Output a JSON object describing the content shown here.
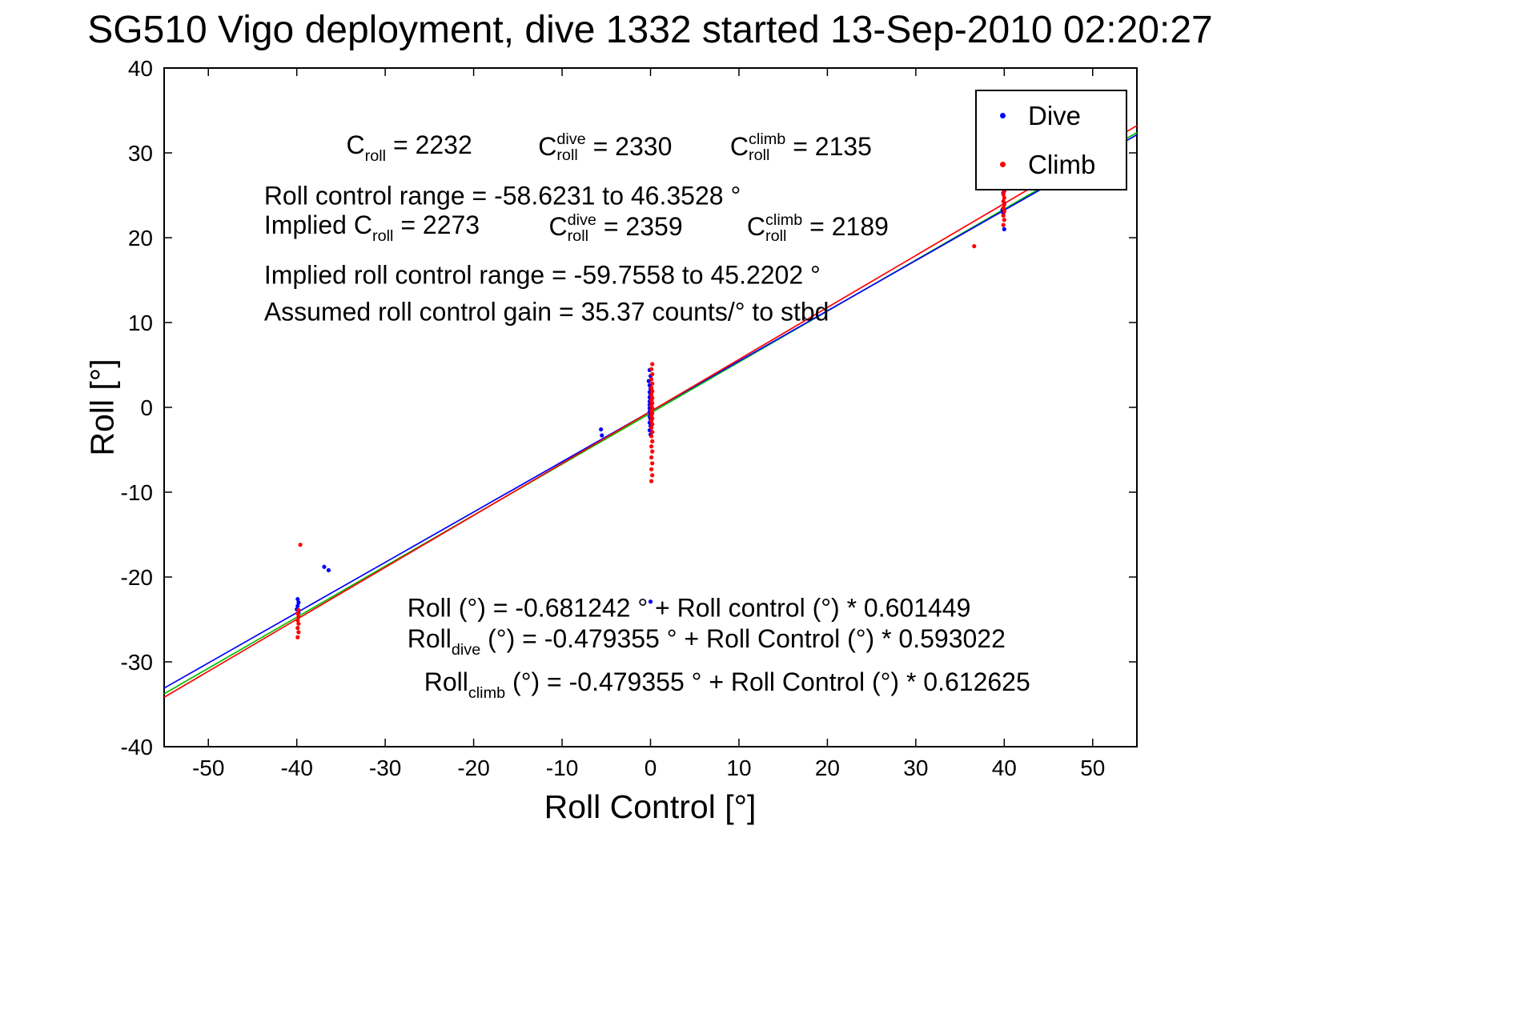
{
  "chart_data": {
    "type": "scatter",
    "title": "SG510 Vigo deployment, dive 1332 started 13-Sep-2010 02:20:27",
    "xlabel": "Roll Control [°]",
    "ylabel": "Roll [°]",
    "xlim": [
      -55,
      55
    ],
    "ylim": [
      -40,
      40
    ],
    "xticks": [
      -50,
      -40,
      -30,
      -20,
      -10,
      0,
      10,
      20,
      30,
      40,
      50
    ],
    "yticks": [
      -40,
      -30,
      -20,
      -10,
      0,
      10,
      20,
      30,
      40
    ],
    "grid": false,
    "legend_position": "top-right",
    "legend": [
      {
        "label": "Dive",
        "color": "#0000ff"
      },
      {
        "label": "Climb",
        "color": "#ff0000"
      }
    ],
    "fit_lines": [
      {
        "name": "all",
        "color": "#00c000",
        "intercept": -0.681242,
        "slope": 0.601449
      },
      {
        "name": "dive",
        "color": "#0000ff",
        "intercept": -0.479355,
        "slope": 0.593022
      },
      {
        "name": "climb",
        "color": "#ff0000",
        "intercept": -0.479355,
        "slope": 0.612625
      }
    ],
    "series": [
      {
        "name": "Dive",
        "color": "#0000ff",
        "points": [
          [
            -39.9,
            -22.6
          ],
          [
            -39.8,
            -23.0
          ],
          [
            -39.9,
            -23.4
          ],
          [
            -40.0,
            -23.8
          ],
          [
            -39.8,
            -24.2
          ],
          [
            -36.9,
            -18.8
          ],
          [
            -36.4,
            -19.2
          ],
          [
            -5.6,
            -2.6
          ],
          [
            -5.5,
            -3.3
          ],
          [
            -0.1,
            4.4
          ],
          [
            0.0,
            3.7
          ],
          [
            -0.2,
            3.1
          ],
          [
            -0.1,
            2.6
          ],
          [
            0.0,
            2.2
          ],
          [
            -0.1,
            1.8
          ],
          [
            0.0,
            1.5
          ],
          [
            -0.1,
            1.2
          ],
          [
            0.0,
            0.9
          ],
          [
            -0.1,
            0.7
          ],
          [
            0.0,
            0.5
          ],
          [
            -0.1,
            0.3
          ],
          [
            0.0,
            0.1
          ],
          [
            -0.1,
            -0.1
          ],
          [
            0.0,
            -0.3
          ],
          [
            -0.1,
            -0.5
          ],
          [
            0.0,
            -0.8
          ],
          [
            -0.1,
            -1.1
          ],
          [
            0.0,
            -1.4
          ],
          [
            -0.1,
            -1.8
          ],
          [
            0.0,
            -2.2
          ],
          [
            -0.1,
            -2.7
          ],
          [
            0.0,
            -3.2
          ],
          [
            0.0,
            -22.9
          ],
          [
            39.9,
            28.9
          ],
          [
            39.8,
            26.1
          ],
          [
            39.9,
            25.3
          ],
          [
            40.0,
            24.0
          ],
          [
            39.8,
            23.3
          ],
          [
            39.9,
            22.9
          ],
          [
            40.0,
            21.0
          ]
        ]
      },
      {
        "name": "Climb",
        "color": "#ff0000",
        "points": [
          [
            -39.6,
            -16.2
          ],
          [
            -39.8,
            -23.9
          ],
          [
            -39.9,
            -24.3
          ],
          [
            -39.8,
            -24.7
          ],
          [
            -39.9,
            -25.1
          ],
          [
            -39.8,
            -25.5
          ],
          [
            -39.9,
            -26.0
          ],
          [
            -39.8,
            -26.5
          ],
          [
            -39.9,
            -27.1
          ],
          [
            0.2,
            5.1
          ],
          [
            0.1,
            4.5
          ],
          [
            0.2,
            3.9
          ],
          [
            0.1,
            3.3
          ],
          [
            0.2,
            2.8
          ],
          [
            0.1,
            2.3
          ],
          [
            0.2,
            1.9
          ],
          [
            0.1,
            1.5
          ],
          [
            0.2,
            1.1
          ],
          [
            0.1,
            0.8
          ],
          [
            0.2,
            0.5
          ],
          [
            0.1,
            0.2
          ],
          [
            0.2,
            -0.1
          ],
          [
            0.1,
            -0.4
          ],
          [
            0.2,
            -0.7
          ],
          [
            0.1,
            -1.0
          ],
          [
            0.2,
            -1.3
          ],
          [
            0.1,
            -1.6
          ],
          [
            0.2,
            -2.0
          ],
          [
            0.1,
            -2.4
          ],
          [
            0.2,
            -2.9
          ],
          [
            0.1,
            -3.4
          ],
          [
            0.2,
            -4.0
          ],
          [
            0.1,
            -4.6
          ],
          [
            0.2,
            -5.2
          ],
          [
            0.1,
            -5.9
          ],
          [
            0.2,
            -6.6
          ],
          [
            0.1,
            -7.3
          ],
          [
            0.2,
            -8.0
          ],
          [
            0.1,
            -8.7
          ],
          [
            36.6,
            19.0
          ],
          [
            39.8,
            26.4
          ],
          [
            39.9,
            25.9
          ],
          [
            40.0,
            25.5
          ],
          [
            39.9,
            25.1
          ],
          [
            40.0,
            24.7
          ],
          [
            39.9,
            24.3
          ],
          [
            40.0,
            23.9
          ],
          [
            39.9,
            23.5
          ],
          [
            40.0,
            23.1
          ],
          [
            39.9,
            22.6
          ],
          [
            40.0,
            22.1
          ],
          [
            39.9,
            21.5
          ]
        ]
      }
    ],
    "annotations": [
      {
        "x": -34.4,
        "y": 30.4,
        "segments": [
          {
            "t": "C"
          },
          {
            "sub": "roll"
          },
          {
            "t": " = 2232"
          }
        ]
      },
      {
        "x": -12.7,
        "y": 30.4,
        "segments": [
          {
            "t": "C"
          },
          {
            "sup": "dive",
            "sub": "roll"
          },
          {
            "t": " = 2330"
          }
        ]
      },
      {
        "x": 9.0,
        "y": 30.4,
        "segments": [
          {
            "t": "C"
          },
          {
            "sup": "climb",
            "sub": "roll"
          },
          {
            "t": " = 2135"
          }
        ]
      },
      {
        "x": -43.7,
        "y": 24.7,
        "segments": [
          {
            "t": "Roll control range = -58.6231 to 46.3528 °"
          }
        ]
      },
      {
        "x": -43.7,
        "y": 20.9,
        "segments": [
          {
            "t": "Implied C"
          },
          {
            "sub": "roll"
          },
          {
            "t": " = 2273"
          }
        ]
      },
      {
        "x": -11.5,
        "y": 20.9,
        "segments": [
          {
            "t": "C"
          },
          {
            "sup": "dive",
            "sub": "roll"
          },
          {
            "t": " = 2359"
          }
        ]
      },
      {
        "x": 10.9,
        "y": 20.9,
        "segments": [
          {
            "t": "C"
          },
          {
            "sup": "climb",
            "sub": "roll"
          },
          {
            "t": " = 2189"
          }
        ]
      },
      {
        "x": -43.7,
        "y": 15.4,
        "segments": [
          {
            "t": "Implied roll control range = -59.7558 to 45.2202 °"
          }
        ]
      },
      {
        "x": -43.7,
        "y": 11.0,
        "segments": [
          {
            "t": "Assumed roll control gain = 35.37 counts/° to stbd"
          }
        ]
      },
      {
        "x": -27.5,
        "y": -23.9,
        "segments": [
          {
            "t": "Roll (°) = -0.681242 ° + Roll control (°) * 0.601449"
          }
        ]
      },
      {
        "x": -27.5,
        "y": -27.8,
        "segments": [
          {
            "t": "Roll"
          },
          {
            "sub": "dive"
          },
          {
            "t": " (°) = -0.479355 ° + Roll Control (°) * 0.593022"
          }
        ]
      },
      {
        "x": -25.6,
        "y": -32.9,
        "segments": [
          {
            "t": "Roll"
          },
          {
            "sub": "climb"
          },
          {
            "t": " (°) = -0.479355 ° + Roll Control (°) * 0.612625"
          }
        ]
      }
    ]
  }
}
